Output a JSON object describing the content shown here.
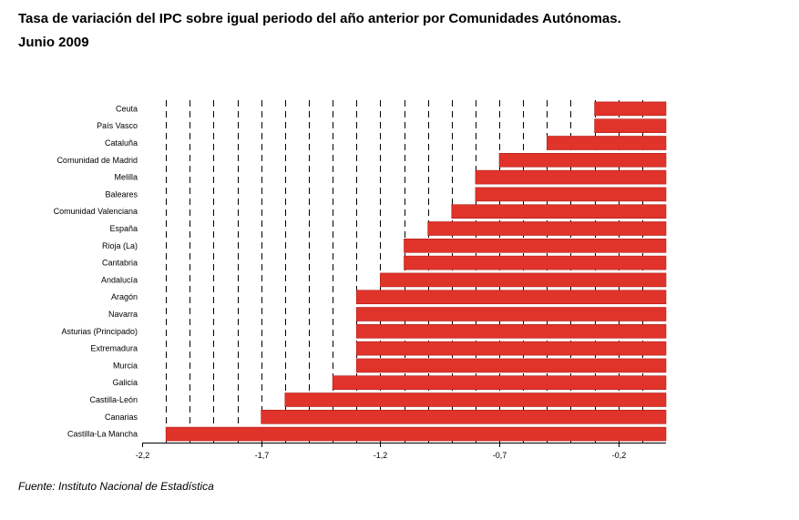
{
  "title_lines": [
    "Tasa de variación del IPC sobre igual periodo del año anterior por Comunidades Autónomas.",
    "Junio 2009"
  ],
  "source": "Fuente: Instituto Nacional de Estadística",
  "colors": {
    "bar": "#e0332a",
    "bar_edge": "#b01e18",
    "grid": "#000000"
  },
  "chart_data": {
    "type": "bar",
    "orientation": "horizontal",
    "title": "Tasa de variación del IPC sobre igual periodo del año anterior por Comunidades Autónomas. Junio 2009",
    "categories": [
      "Ceuta",
      "País Vasco",
      "Cataluña",
      "Comunidad de Madrid",
      "Melilla",
      "Baleares",
      "Comunidad Valenciana",
      "España",
      "Rioja (La)",
      "Cantabria",
      "Andalucía",
      "Aragón",
      "Navarra",
      "Asturias (Principado)",
      "Extremadura",
      "Murcia",
      "Galicia",
      "Castilla-León",
      "Canarias",
      "Castilla-La Mancha"
    ],
    "values": [
      -0.3,
      -0.3,
      -0.5,
      -0.7,
      -0.8,
      -0.8,
      -0.9,
      -1.0,
      -1.1,
      -1.1,
      -1.2,
      -1.3,
      -1.3,
      -1.3,
      -1.3,
      -1.3,
      -1.4,
      -1.6,
      -1.7,
      -2.1
    ],
    "xlim": [
      -2.2,
      0.0
    ],
    "xticks": [
      -2.2,
      -1.7,
      -1.2,
      -0.7,
      -0.2
    ],
    "xtick_labels": [
      "-2,2",
      "-1,7",
      "-1,2",
      "-0,7",
      "-0,2"
    ],
    "gridlines": "vertical dashed every 0.1",
    "legend": "none"
  }
}
